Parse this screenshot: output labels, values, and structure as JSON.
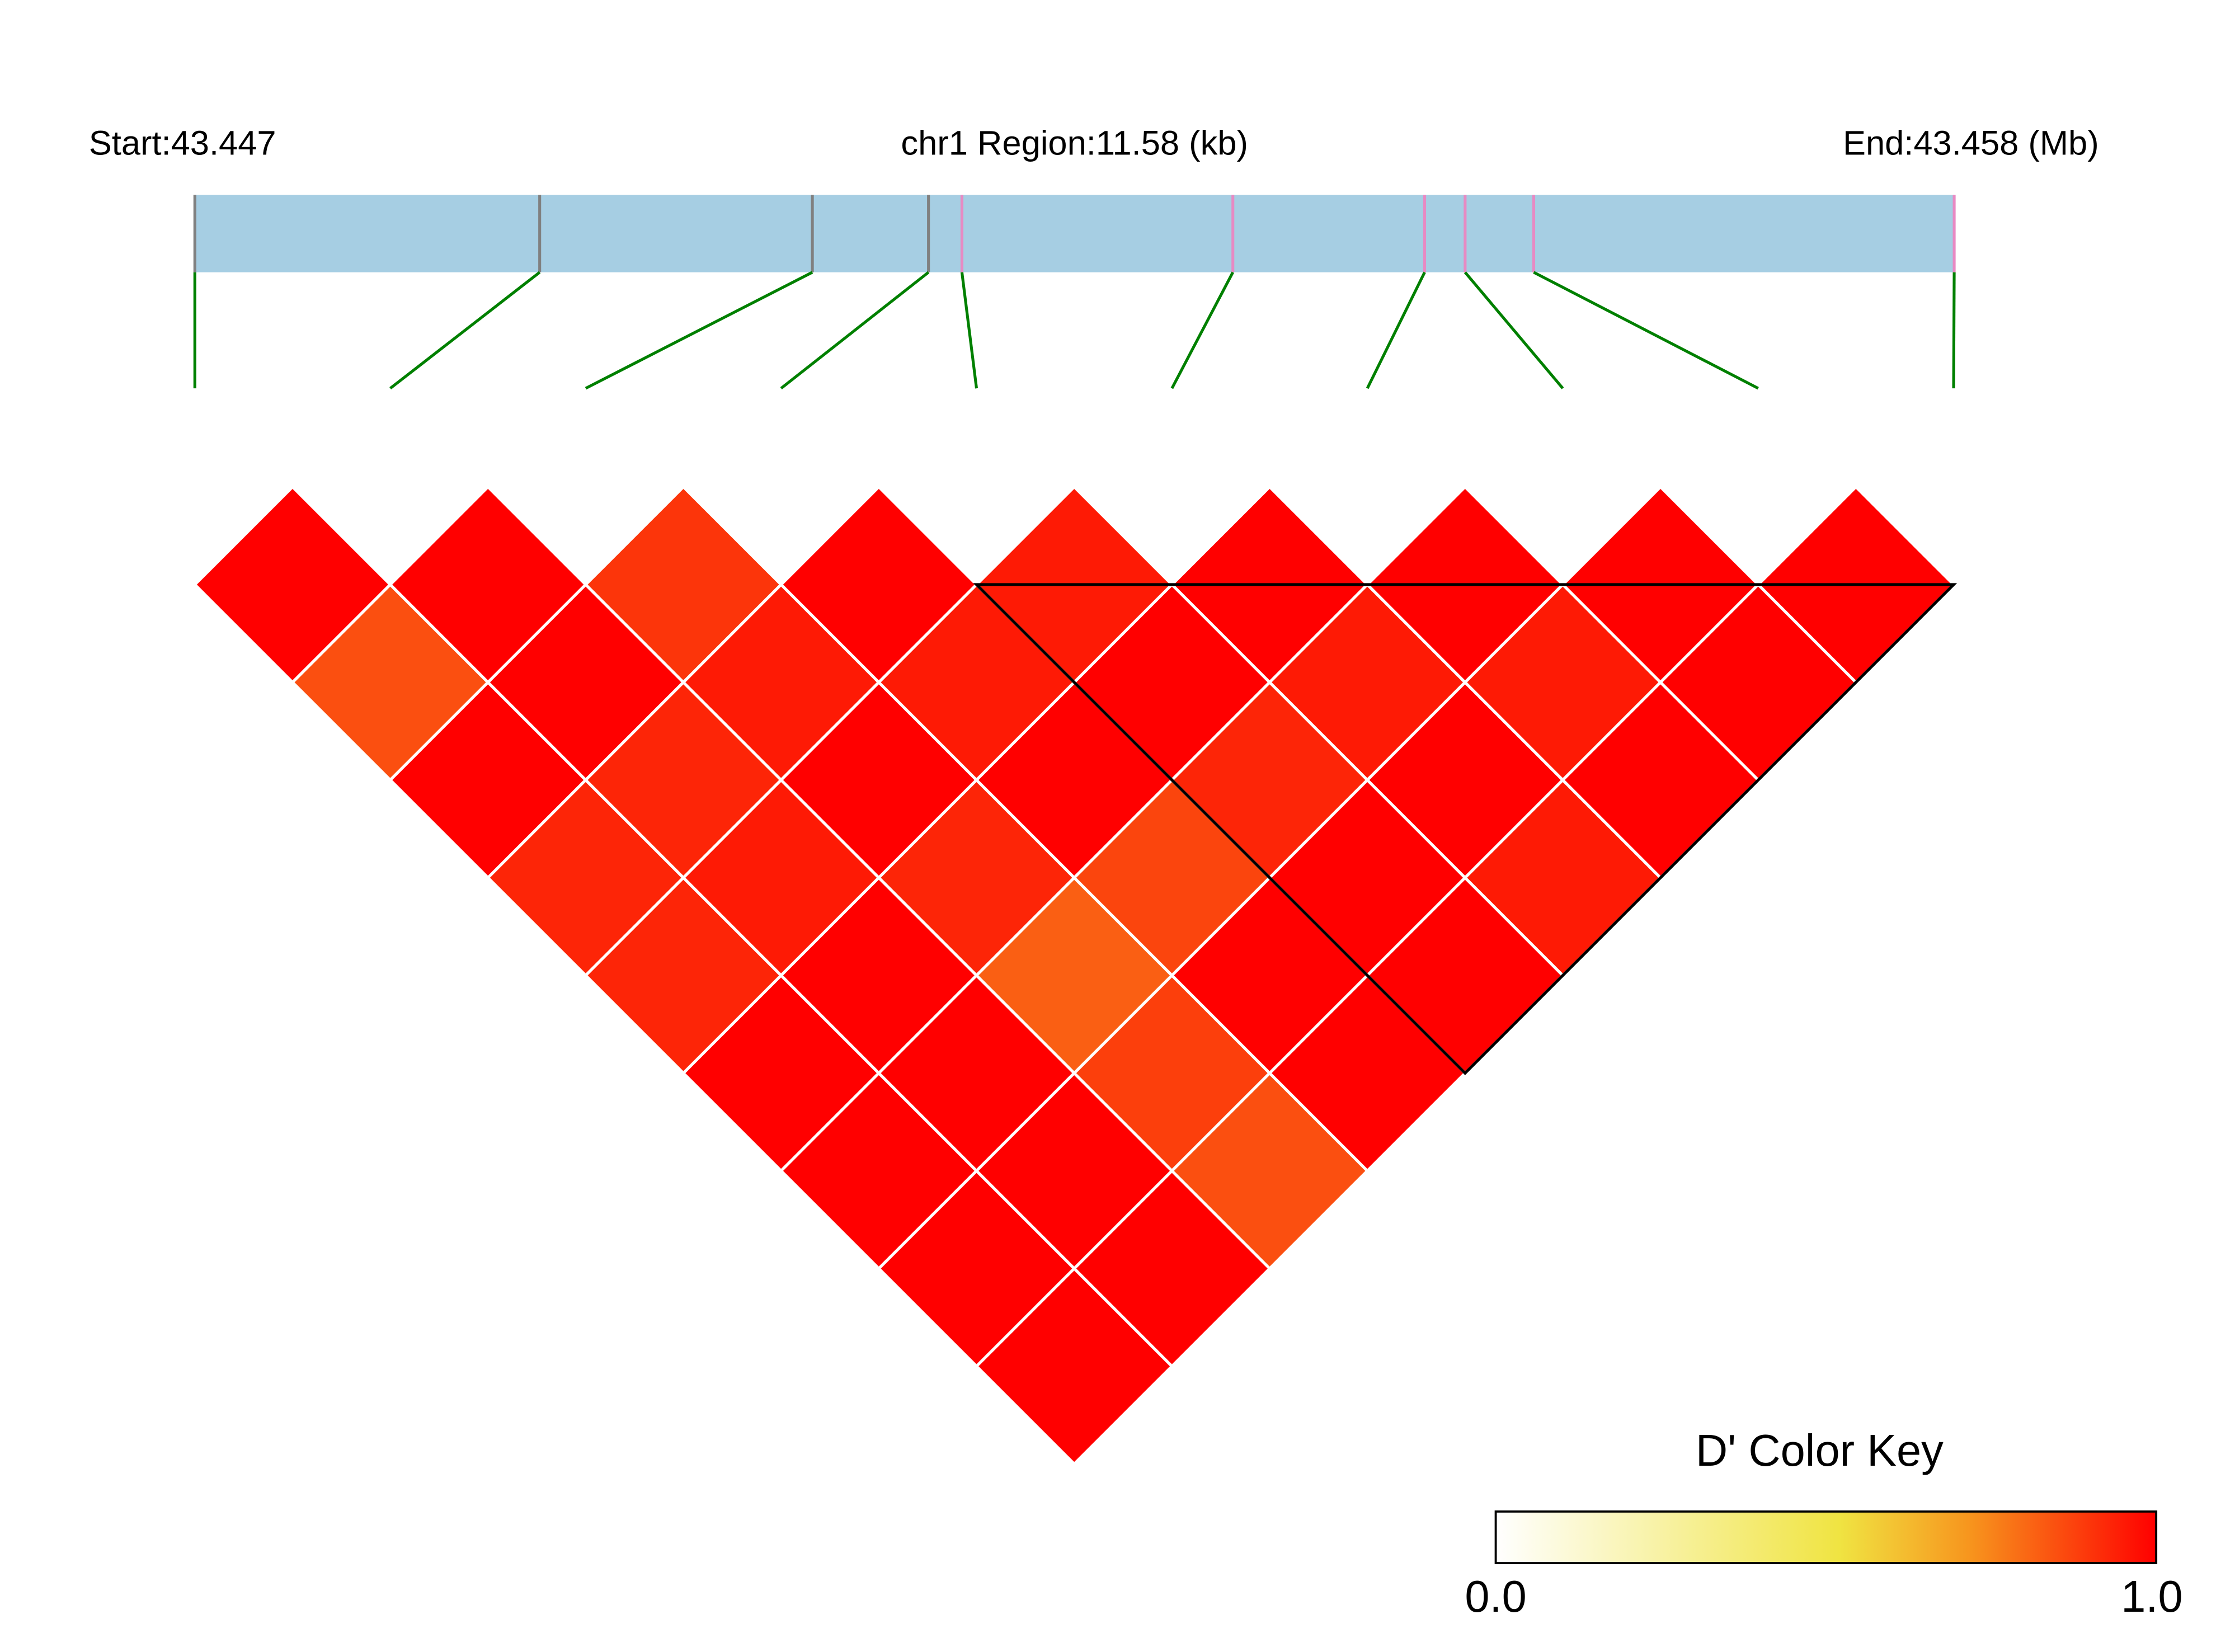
{
  "header": {
    "start_label": "Start:43.447",
    "region_label": "chr1 Region:11.58 (kb)",
    "end_label": "End:43.458 (Mb)"
  },
  "colors": {
    "track_fill": "#a6cee3",
    "tick_gray": "#808080",
    "tick_pink": "#e78ac3",
    "connector": "#008000",
    "cell_border": "#ffffff",
    "block_outline": "#000000",
    "key_low": "#ffffff",
    "key_mid": "#f0e442",
    "key_high": "#ff0000"
  },
  "chart_data": {
    "type": "heatmap",
    "description_of_values": "Pairwise D' between consecutive SNPs (row = SNP i, col = SNP j > i)",
    "snp_positions_fraction": [
      0.0,
      0.196,
      0.351,
      0.417,
      0.436,
      0.59,
      0.699,
      0.722,
      0.761,
      1.0
    ],
    "snp_tick_colors": [
      "gray",
      "gray",
      "gray",
      "gray",
      "pink",
      "pink",
      "pink",
      "pink",
      "pink",
      "pink"
    ],
    "dprime": [
      [
        null,
        1.0,
        0.85,
        1.0,
        0.93,
        0.93,
        1.0,
        1.0,
        1.0,
        1.0
      ],
      [
        null,
        null,
        1.0,
        1.0,
        0.93,
        0.95,
        1.0,
        1.0,
        1.0,
        1.0
      ],
      [
        null,
        null,
        null,
        0.9,
        0.95,
        1.0,
        0.93,
        0.82,
        0.88,
        0.85
      ],
      [
        null,
        null,
        null,
        null,
        1.0,
        0.95,
        1.0,
        0.87,
        1.0,
        1.0
      ],
      [
        null,
        null,
        null,
        null,
        null,
        0.95,
        1.0,
        0.93,
        1.0,
        1.0
      ],
      [
        null,
        null,
        null,
        null,
        null,
        null,
        1.0,
        0.95,
        1.0,
        0.95
      ],
      [
        null,
        null,
        null,
        null,
        null,
        null,
        null,
        1.0,
        0.95,
        1.0
      ],
      [
        null,
        null,
        null,
        null,
        null,
        null,
        null,
        null,
        1.0,
        1.0
      ],
      [
        null,
        null,
        null,
        null,
        null,
        null,
        null,
        null,
        null,
        1.0
      ],
      [
        null,
        null,
        null,
        null,
        null,
        null,
        null,
        null,
        null,
        null
      ]
    ],
    "blocks": [
      {
        "first_snp": 4,
        "last_snp": 9
      }
    ],
    "color_key": {
      "title": "D' Color Key",
      "min_label": "0.0",
      "max_label": "1.0",
      "range": [
        0.0,
        1.0
      ]
    }
  }
}
